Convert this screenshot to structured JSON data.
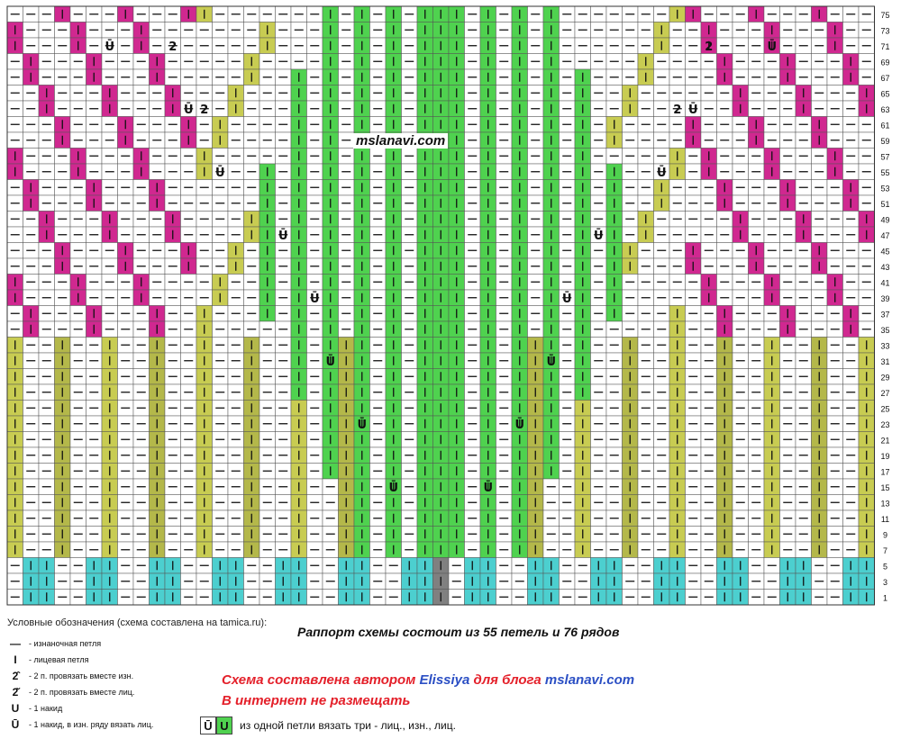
{
  "watermark": "mslanavi.com",
  "row_numbers": [
    "75",
    "73",
    "71",
    "69",
    "67",
    "65",
    "63",
    "61",
    "59",
    "57",
    "55",
    "53",
    "51",
    "49",
    "47",
    "45",
    "43",
    "41",
    "39",
    "37",
    "35",
    "33",
    "31",
    "29",
    "27",
    "25",
    "23",
    "21",
    "19",
    "17",
    "15",
    "13",
    "11",
    "9",
    "7",
    "5",
    "3",
    "1"
  ],
  "legend": {
    "title": "Условные обозначения (схема составлена на tamica.ru):",
    "items": [
      {
        "symbol": "—",
        "text": "- изнаночная петля"
      },
      {
        "symbol": "I",
        "text": "- лицевая петля"
      },
      {
        "symbol": "2̂",
        "text": "- 2 п. провязать вместе изн."
      },
      {
        "symbol": "2̌",
        "text": "- 2 п. провязать вместе лиц."
      },
      {
        "symbol": "U",
        "text": "- 1 накид"
      },
      {
        "symbol": "Ū",
        "text": "- 1 накид, в изн. ряду вязать лиц."
      }
    ]
  },
  "repeat_note": "Раппорт схемы состоит из 55 петель и 76 рядов",
  "author": {
    "prefix": "Схема составлена автором ",
    "name": "Elissiya",
    "middle": " для блога ",
    "site": "mslanavi.com",
    "line2": "В интернет не размещать"
  },
  "three_stitch": {
    "sym_a": "Ū",
    "sym_b": "U",
    "text": "из одной петли вязать три - лиц., изн., лиц."
  },
  "colors": {
    "pink": "#d02890",
    "green": "#4fd24f",
    "olive": "#c8cc52",
    "dark_olive": "#b4b84a",
    "cyan": "#4ccfcf",
    "gray": "#808080",
    "white": "#ffffff",
    "grid": "#555555"
  }
}
